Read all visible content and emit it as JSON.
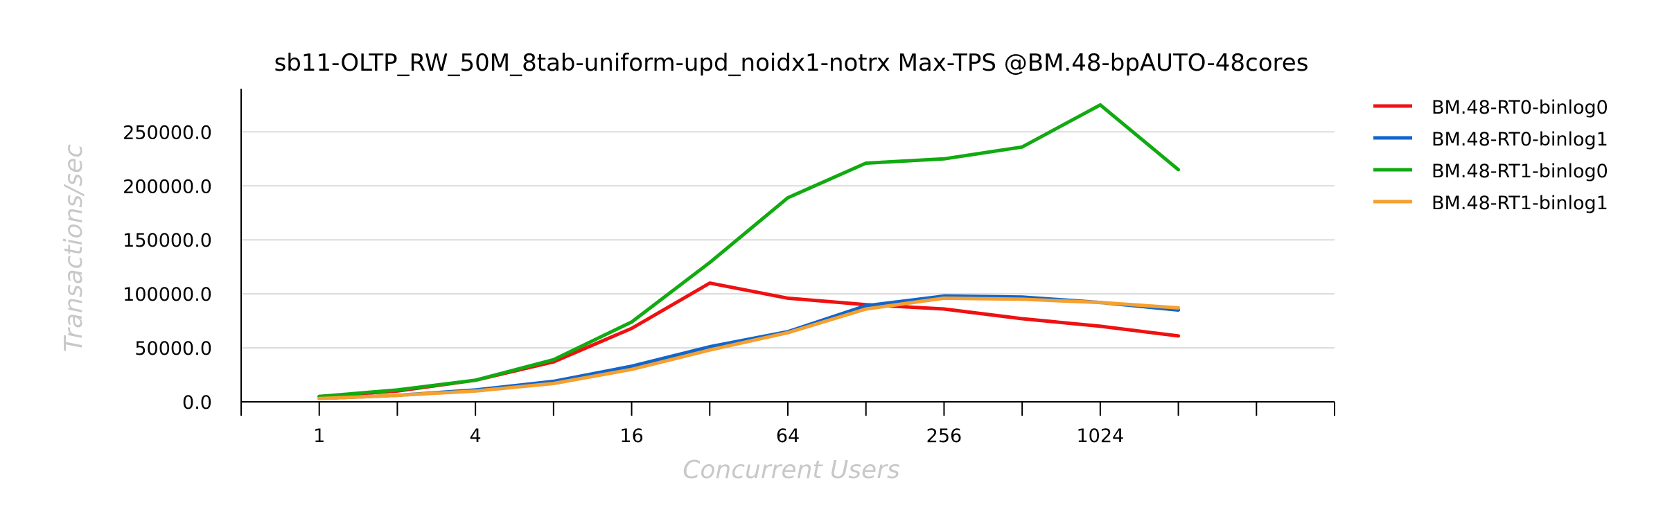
{
  "chart_data": {
    "type": "line",
    "title": "sb11-OLTP_RW_50M_8tab-uniform-upd_noidx1-notrx Max-TPS @BM.48-bpAUTO-48cores",
    "xlabel": "Concurrent Users",
    "ylabel": "Transactions/sec",
    "x": [
      1,
      2,
      4,
      8,
      16,
      32,
      64,
      128,
      256,
      512,
      1024,
      2048
    ],
    "x_scale": "log2",
    "x_tick_labels": [
      "1",
      "4",
      "16",
      "64",
      "256",
      "1024"
    ],
    "x_tick_values": [
      1,
      4,
      16,
      64,
      256,
      1024
    ],
    "xlim": [
      0.5,
      8192
    ],
    "ylim": [
      0,
      290000
    ],
    "y_ticks": [
      0,
      50000,
      100000,
      150000,
      200000,
      250000
    ],
    "y_tick_labels": [
      "0.0",
      "50000.0",
      "100000.0",
      "150000.0",
      "200000.0",
      "250000.0"
    ],
    "grid": true,
    "legend_position": "right",
    "series": [
      {
        "name": "BM.48-RT0-binlog0",
        "color": "#ee1111",
        "values": [
          5000,
          10000,
          20000,
          37000,
          68000,
          110000,
          96000,
          90000,
          86000,
          77000,
          70000,
          61000
        ]
      },
      {
        "name": "BM.48-RT0-binlog1",
        "color": "#1166cc",
        "values": [
          3000,
          6000,
          11000,
          19000,
          33000,
          51000,
          65000,
          89000,
          98000,
          97000,
          92000,
          85000
        ]
      },
      {
        "name": "BM.48-RT1-binlog0",
        "color": "#11aa11",
        "values": [
          5000,
          11000,
          20000,
          39000,
          74000,
          129000,
          189000,
          221000,
          225000,
          236000,
          275000,
          215000
        ]
      },
      {
        "name": "BM.48-RT1-binlog1",
        "color": "#f5a030",
        "values": [
          3000,
          6000,
          10000,
          17000,
          30000,
          48000,
          64000,
          86000,
          96000,
          95000,
          92000,
          87000
        ]
      }
    ]
  }
}
